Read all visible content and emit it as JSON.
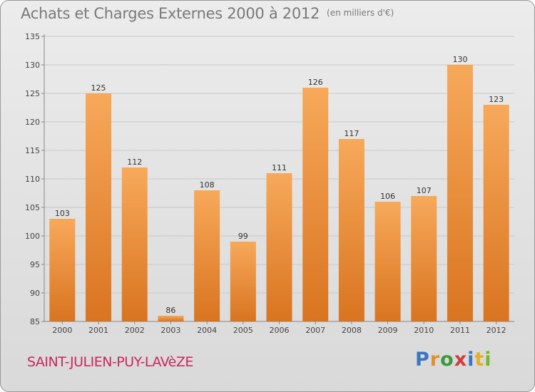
{
  "title": "Achats et Charges Externes 2000 à 2012",
  "title_unit": "(en milliers d'€)",
  "commune": "SAINT-JULIEN-PUY-LAVèZE",
  "logo": {
    "letters": [
      "P",
      "r",
      "o",
      "x",
      "i",
      "t",
      "i"
    ],
    "colors": [
      "#3a76c4",
      "#e0912a",
      "#3a9a3a",
      "#d43a3a",
      "#3a76c4",
      "#e0b02a",
      "#7ab82a"
    ]
  },
  "colors": {
    "bar_light": "#f7a95a",
    "bar_dark": "#d97420",
    "grid": "#c8c8c8",
    "axis": "#888888"
  },
  "chart_data": {
    "type": "bar",
    "categories": [
      "2000",
      "2001",
      "2002",
      "2003",
      "2004",
      "2005",
      "2006",
      "2007",
      "2008",
      "2009",
      "2010",
      "2011",
      "2012"
    ],
    "values": [
      103,
      125,
      112,
      86,
      108,
      99,
      111,
      126,
      117,
      106,
      107,
      130,
      123
    ],
    "ylim": [
      85,
      135
    ],
    "yticks": [
      85,
      90,
      95,
      100,
      105,
      110,
      115,
      120,
      125,
      130,
      135
    ],
    "grid": true,
    "xlabel": "",
    "ylabel": ""
  }
}
